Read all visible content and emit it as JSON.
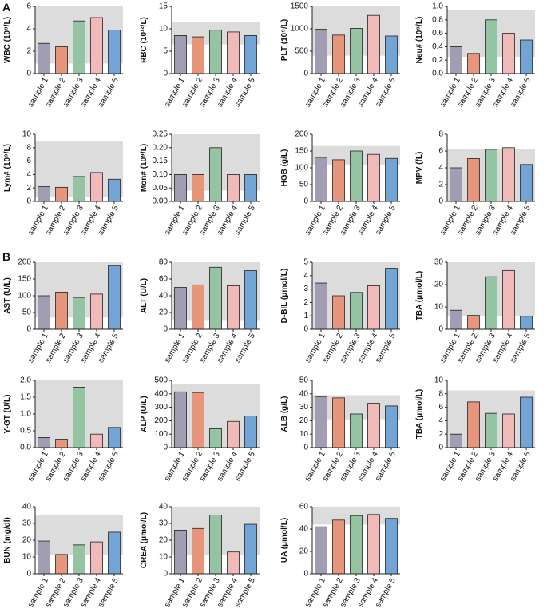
{
  "panel_labels": [
    "A",
    "B"
  ],
  "bar_colors": [
    "#a39db3",
    "#e8967b",
    "#94c4a1",
    "#f1b9b8",
    "#72a5d6"
  ],
  "band_color": "#dcdcdc",
  "chart_data": [
    {
      "type": "bar",
      "ylabel": "WBC (10⁹/L)",
      "categories": [
        "sample 1",
        "sample 2",
        "sample 3",
        "sample 4",
        "sample 5"
      ],
      "values": [
        2.7,
        2.4,
        4.7,
        5.0,
        3.9
      ],
      "ylim": [
        0,
        6
      ],
      "yticks": [
        0,
        2,
        4,
        6
      ],
      "band": [
        0.9,
        6
      ]
    },
    {
      "type": "bar",
      "ylabel": "RBC (10¹²/L)",
      "categories": [
        "sample 1",
        "sample 2",
        "sample 3",
        "sample 4",
        "sample 5"
      ],
      "values": [
        8.5,
        8.2,
        9.7,
        9.3,
        8.5
      ],
      "ylim": [
        0,
        15
      ],
      "yticks": [
        0,
        5,
        10,
        15
      ],
      "band": [
        6.5,
        11.5
      ]
    },
    {
      "type": "bar",
      "ylabel": "PLT (10⁹/L)",
      "categories": [
        "sample 1",
        "sample 2",
        "sample 3",
        "sample 4",
        "sample 5"
      ],
      "values": [
        990,
        860,
        1010,
        1300,
        840
      ],
      "ylim": [
        0,
        1500
      ],
      "yticks": [
        0,
        500,
        1000,
        1500
      ],
      "band": [
        400,
        1500
      ]
    },
    {
      "type": "bar",
      "ylabel": "Neu# (10⁹/L)",
      "categories": [
        "sample 1",
        "sample 2",
        "sample 3",
        "sample 4",
        "sample 5"
      ],
      "values": [
        0.4,
        0.3,
        0.8,
        0.6,
        0.5
      ],
      "ylim": [
        0,
        1.0
      ],
      "yticks": [
        {
          "value": 0,
          "label": "0.0"
        },
        0.2,
        0.4,
        0.6,
        0.8,
        {
          "value": 1,
          "label": "1.0"
        }
      ],
      "band": [
        0.25,
        0.95
      ]
    },
    {
      "type": "bar",
      "ylabel": "Lym# (10⁹/L)",
      "categories": [
        "sample 1",
        "sample 2",
        "sample 3",
        "sample 4",
        "sample 5"
      ],
      "values": [
        2.2,
        2.1,
        3.7,
        4.3,
        3.3
      ],
      "ylim": [
        0,
        10
      ],
      "yticks": [
        0,
        2,
        4,
        6,
        8,
        10
      ],
      "band": [
        0.6,
        8.9
      ]
    },
    {
      "type": "bar",
      "ylabel": "Mon# (10⁹/L)",
      "categories": [
        "sample 1",
        "sample 2",
        "sample 3",
        "sample 4",
        "sample 5"
      ],
      "values": [
        0.1,
        0.1,
        0.2,
        0.1,
        0.1
      ],
      "ylim": [
        0,
        0.25
      ],
      "yticks": [
        {
          "value": 0,
          "label": "0.00"
        },
        0.05,
        {
          "value": 0.1,
          "label": "0.10"
        },
        0.15,
        {
          "value": 0.2,
          "label": "0.20"
        },
        0.25
      ],
      "band": [
        0.04,
        0.25
      ]
    },
    {
      "type": "bar",
      "ylabel": "HGB (g/L)",
      "categories": [
        "sample 1",
        "sample 2",
        "sample 3",
        "sample 4",
        "sample 5"
      ],
      "values": [
        131,
        124,
        150,
        140,
        128
      ],
      "ylim": [
        0,
        200
      ],
      "yticks": [
        0,
        50,
        100,
        150,
        200
      ],
      "band": [
        110,
        165
      ]
    },
    {
      "type": "bar",
      "ylabel": "MPV (fL)",
      "categories": [
        "sample 1",
        "sample 2",
        "sample 3",
        "sample 4",
        "sample 5"
      ],
      "values": [
        4.0,
        5.1,
        6.2,
        6.4,
        4.4
      ],
      "ylim": [
        0,
        8
      ],
      "yticks": [
        0,
        2,
        4,
        6,
        8
      ],
      "band": [
        0,
        6.2
      ]
    },
    {
      "type": "bar",
      "ylabel": "AST (U/L)",
      "categories": [
        "sample 1",
        "sample 2",
        "sample 3",
        "sample 4",
        "sample 5"
      ],
      "values": [
        100,
        111,
        95,
        105,
        190
      ],
      "ylim": [
        0,
        200
      ],
      "yticks": [
        0,
        50,
        100,
        150,
        200
      ],
      "band": [
        35,
        200
      ]
    },
    {
      "type": "bar",
      "ylabel": "ALT (U/L)",
      "categories": [
        "sample 1",
        "sample 2",
        "sample 3",
        "sample 4",
        "sample 5"
      ],
      "values": [
        50,
        53,
        74,
        52,
        70
      ],
      "ylim": [
        0,
        80
      ],
      "yticks": [
        0,
        20,
        40,
        60,
        80
      ],
      "band": [
        10,
        80
      ]
    },
    {
      "type": "bar",
      "ylabel": "D-BIL (μmol/L)",
      "categories": [
        "sample 1",
        "sample 2",
        "sample 3",
        "sample 4",
        "sample 5"
      ],
      "values": [
        3.45,
        2.5,
        2.75,
        3.25,
        4.55
      ],
      "ylim": [
        0,
        5
      ],
      "yticks": [
        0,
        1,
        2,
        3,
        4,
        5
      ],
      "band": [
        0,
        5
      ]
    },
    {
      "type": "bar",
      "ylabel": "TBA (μmol/L)",
      "categories": [
        "sample 1",
        "sample 2",
        "sample 3",
        "sample 4",
        "sample 5"
      ],
      "values": [
        8.5,
        6.2,
        23.5,
        26.3,
        5.8
      ],
      "ylim": [
        0,
        30
      ],
      "yticks": [
        0,
        10,
        20,
        30
      ],
      "band": [
        6,
        30
      ]
    },
    {
      "type": "bar",
      "ylabel": "Y-GT (U/L)",
      "categories": [
        "sample 1",
        "sample 2",
        "sample 3",
        "sample 4",
        "sample 5"
      ],
      "values": [
        0.3,
        0.25,
        1.8,
        0.4,
        0.6
      ],
      "ylim": [
        0,
        2.0
      ],
      "yticks": [
        {
          "value": 0,
          "label": "0.0"
        },
        0.5,
        {
          "value": 1,
          "label": "1.0"
        },
        1.5,
        {
          "value": 2,
          "label": "2.0"
        }
      ],
      "band": [
        0,
        2
      ]
    },
    {
      "type": "bar",
      "ylabel": "ALP (U/L)",
      "categories": [
        "sample 1",
        "sample 2",
        "sample 3",
        "sample 4",
        "sample 5"
      ],
      "values": [
        415,
        410,
        140,
        195,
        235
      ],
      "ylim": [
        0,
        500
      ],
      "yticks": [
        0,
        100,
        200,
        300,
        400,
        500
      ],
      "band": [
        0,
        470
      ]
    },
    {
      "type": "bar",
      "ylabel": "ALB (g/L)",
      "categories": [
        "sample 1",
        "sample 2",
        "sample 3",
        "sample 4",
        "sample 5"
      ],
      "values": [
        38,
        37,
        25,
        33,
        31
      ],
      "ylim": [
        0,
        50
      ],
      "yticks": [
        0,
        10,
        20,
        30,
        40,
        50
      ],
      "band": [
        21,
        39
      ]
    },
    {
      "type": "bar",
      "ylabel": "TBA (μmol/L)",
      "categories": [
        "sample 1",
        "sample 2",
        "sample 3",
        "sample 4",
        "sample 5"
      ],
      "values": [
        2.0,
        6.8,
        5.1,
        5.0,
        7.5
      ],
      "ylim": [
        0,
        10
      ],
      "yticks": [
        0,
        2,
        4,
        6,
        8,
        10
      ],
      "band": [
        0,
        8.5
      ]
    },
    {
      "type": "bar",
      "ylabel": "BUN (mg/dl)",
      "categories": [
        "sample 1",
        "sample 2",
        "sample 3",
        "sample 4",
        "sample 5"
      ],
      "values": [
        19.5,
        11.5,
        17.2,
        19,
        24.8
      ],
      "ylim": [
        0,
        40
      ],
      "yticks": [
        0,
        10,
        20,
        30,
        40
      ],
      "band": [
        11,
        35
      ]
    },
    {
      "type": "bar",
      "ylabel": "CREA (μmol/L)",
      "categories": [
        "sample 1",
        "sample 2",
        "sample 3",
        "sample 4",
        "sample 5"
      ],
      "values": [
        26,
        27,
        35,
        13,
        29.5
      ],
      "ylim": [
        0,
        40
      ],
      "yticks": [
        0,
        10,
        20,
        30,
        40
      ],
      "band": [
        11,
        40
      ]
    },
    {
      "type": "bar",
      "ylabel": "UA (μmol/L)",
      "categories": [
        "sample 1",
        "sample 2",
        "sample 3",
        "sample 4",
        "sample 5"
      ],
      "values": [
        42,
        48,
        52,
        53,
        49.5
      ],
      "ylim": [
        0,
        60
      ],
      "yticks": [
        0,
        20,
        40,
        60
      ],
      "band": [
        44,
        60
      ]
    }
  ]
}
